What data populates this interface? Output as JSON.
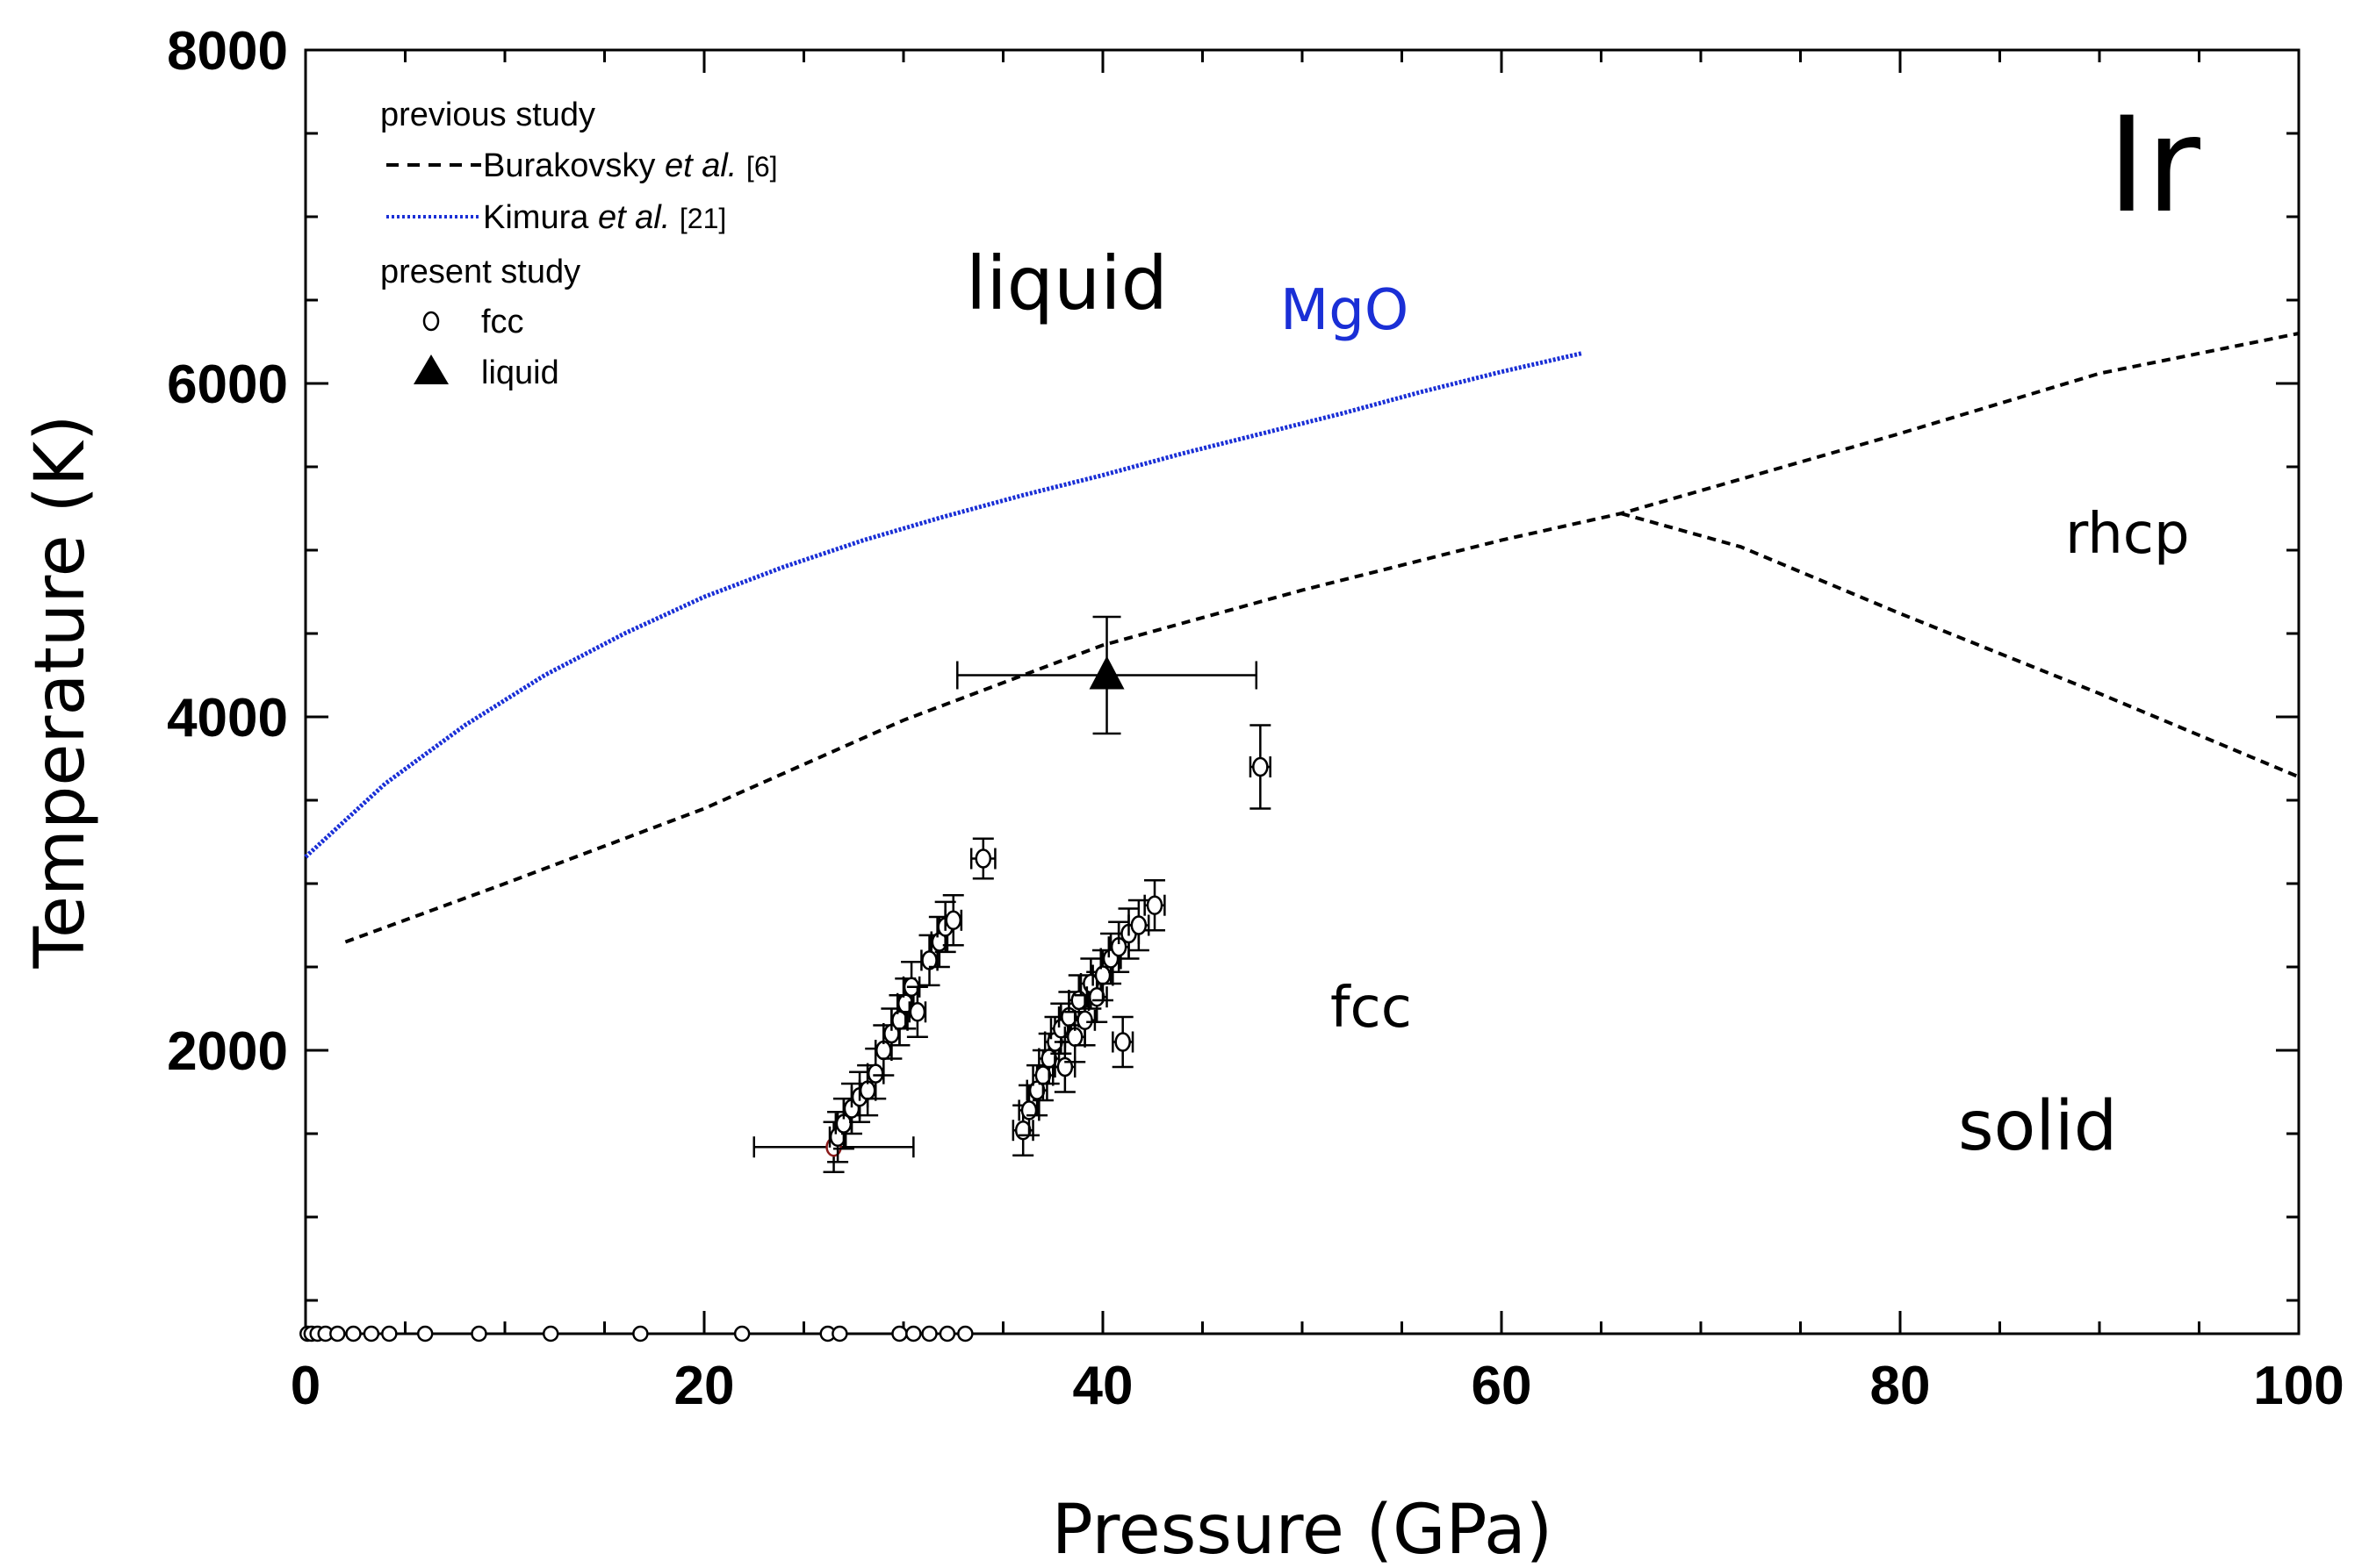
{
  "chart_data": {
    "type": "scatter",
    "element": "Ir",
    "xlabel": "Pressure (GPa)",
    "ylabel": "Temperature (K)",
    "xlim": [
      0,
      100
    ],
    "ylim": [
      300,
      8000
    ],
    "x_ticks": [
      0,
      20,
      40,
      60,
      80,
      100
    ],
    "y_ticks": [
      2000,
      4000,
      6000,
      8000
    ],
    "x_tick_labels": [
      "0",
      "20",
      "40",
      "60",
      "80",
      "100"
    ],
    "y_tick_labels": [
      "2000",
      "4000",
      "6000",
      "8000"
    ],
    "legend": {
      "previous_header": "previous study",
      "burakovsky": {
        "name": "Burakovsky",
        "etal": "et al.",
        "ref": "[6]"
      },
      "kimura": {
        "name": "Kimura",
        "etal": "et al.",
        "ref": "[21]"
      },
      "present_header": "present study",
      "fcc_label": "fcc",
      "liquid_label": "liquid"
    },
    "region_labels": {
      "element": "Ir",
      "liquid": "liquid",
      "mgo": "MgO",
      "rhcp": "rhcp",
      "fcc": "fcc",
      "solid": "solid"
    },
    "series": [
      {
        "name": "Kimura et al. (MgO melting)",
        "style": "dotted-blue",
        "color": "#1a2fd6",
        "points": [
          [
            0,
            3160
          ],
          [
            4,
            3600
          ],
          [
            8,
            3950
          ],
          [
            12,
            4250
          ],
          [
            16,
            4500
          ],
          [
            20,
            4720
          ],
          [
            24,
            4900
          ],
          [
            28,
            5060
          ],
          [
            32,
            5200
          ],
          [
            36,
            5330
          ],
          [
            40,
            5450
          ],
          [
            44,
            5580
          ],
          [
            48,
            5700
          ],
          [
            52,
            5820
          ],
          [
            56,
            5950
          ],
          [
            60,
            6070
          ],
          [
            64,
            6180
          ]
        ]
      },
      {
        "name": "Burakovsky et al. melting",
        "style": "dashed-black",
        "color": "#000000",
        "points": [
          [
            2,
            2650
          ],
          [
            10,
            3000
          ],
          [
            20,
            3450
          ],
          [
            30,
            3980
          ],
          [
            40,
            4430
          ],
          [
            50,
            4760
          ],
          [
            60,
            5060
          ],
          [
            66,
            5220
          ],
          [
            80,
            5700
          ],
          [
            90,
            6060
          ],
          [
            100,
            6300
          ]
        ]
      },
      {
        "name": "Burakovsky et al. fcc-rhcp",
        "style": "dashed-black",
        "color": "#000000",
        "points": [
          [
            66,
            5220
          ],
          [
            72,
            5020
          ],
          [
            80,
            4620
          ],
          [
            90,
            4140
          ],
          [
            100,
            3640
          ]
        ]
      }
    ],
    "fcc_points": [
      {
        "p": 26.5,
        "t": 1420,
        "pe": 4.0,
        "te": 150,
        "color": "#8b1a1a"
      },
      {
        "p": 26.7,
        "t": 1480,
        "pe": 0.4,
        "te": 150
      },
      {
        "p": 27.0,
        "t": 1560,
        "pe": 0.4,
        "te": 150
      },
      {
        "p": 27.4,
        "t": 1650,
        "pe": 0.4,
        "te": 150
      },
      {
        "p": 27.8,
        "t": 1720,
        "pe": 0.4,
        "te": 150
      },
      {
        "p": 28.2,
        "t": 1760,
        "pe": 0.4,
        "te": 150
      },
      {
        "p": 28.6,
        "t": 1860,
        "pe": 0.4,
        "te": 150
      },
      {
        "p": 29.0,
        "t": 2000,
        "pe": 0.4,
        "te": 150
      },
      {
        "p": 29.4,
        "t": 2100,
        "pe": 0.4,
        "te": 150
      },
      {
        "p": 29.8,
        "t": 2180,
        "pe": 0.4,
        "te": 150
      },
      {
        "p": 30.1,
        "t": 2280,
        "pe": 0.4,
        "te": 150
      },
      {
        "p": 30.4,
        "t": 2380,
        "pe": 0.4,
        "te": 150
      },
      {
        "p": 30.7,
        "t": 2230,
        "pe": 0.4,
        "te": 150
      },
      {
        "p": 31.3,
        "t": 2540,
        "pe": 0.4,
        "te": 150
      },
      {
        "p": 31.8,
        "t": 2650,
        "pe": 0.4,
        "te": 150
      },
      {
        "p": 32.1,
        "t": 2740,
        "pe": 0.4,
        "te": 150
      },
      {
        "p": 32.5,
        "t": 2780,
        "pe": 0.4,
        "te": 150
      },
      {
        "p": 34.0,
        "t": 3150,
        "pe": 0.6,
        "te": 120
      },
      {
        "p": 36.0,
        "t": 1520,
        "pe": 0.5,
        "te": 150
      },
      {
        "p": 36.3,
        "t": 1640,
        "pe": 0.5,
        "te": 150
      },
      {
        "p": 36.7,
        "t": 1760,
        "pe": 0.5,
        "te": 150
      },
      {
        "p": 37.0,
        "t": 1850,
        "pe": 0.5,
        "te": 150
      },
      {
        "p": 37.3,
        "t": 1950,
        "pe": 0.5,
        "te": 150
      },
      {
        "p": 37.6,
        "t": 2050,
        "pe": 0.5,
        "te": 150
      },
      {
        "p": 37.9,
        "t": 2130,
        "pe": 0.5,
        "te": 150
      },
      {
        "p": 38.1,
        "t": 1900,
        "pe": 0.5,
        "te": 150
      },
      {
        "p": 38.3,
        "t": 2200,
        "pe": 0.5,
        "te": 150
      },
      {
        "p": 38.6,
        "t": 2080,
        "pe": 0.5,
        "te": 150
      },
      {
        "p": 38.8,
        "t": 2300,
        "pe": 0.5,
        "te": 150
      },
      {
        "p": 39.1,
        "t": 2180,
        "pe": 0.5,
        "te": 150
      },
      {
        "p": 39.4,
        "t": 2400,
        "pe": 0.5,
        "te": 150
      },
      {
        "p": 39.7,
        "t": 2320,
        "pe": 0.5,
        "te": 150
      },
      {
        "p": 40.0,
        "t": 2450,
        "pe": 0.5,
        "te": 150
      },
      {
        "p": 40.4,
        "t": 2550,
        "pe": 0.5,
        "te": 150
      },
      {
        "p": 40.8,
        "t": 2620,
        "pe": 0.5,
        "te": 150
      },
      {
        "p": 41.0,
        "t": 2050,
        "pe": 0.5,
        "te": 150
      },
      {
        "p": 41.3,
        "t": 2700,
        "pe": 0.5,
        "te": 150
      },
      {
        "p": 41.8,
        "t": 2750,
        "pe": 0.5,
        "te": 150
      },
      {
        "p": 42.6,
        "t": 2870,
        "pe": 0.5,
        "te": 150
      },
      {
        "p": 47.9,
        "t": 3700,
        "pe": 0.5,
        "te": 250
      }
    ],
    "liquid_points": [
      {
        "p": 40.2,
        "t": 4250,
        "pe": 7.5,
        "te": 350
      }
    ],
    "ambient_points_t": 300,
    "ambient_points_p": [
      0.1,
      0.3,
      0.6,
      1.0,
      1.6,
      2.4,
      3.3,
      4.2,
      6.0,
      8.7,
      12.3,
      16.8,
      21.9,
      26.2,
      26.8,
      29.8,
      30.5,
      31.3,
      32.2,
      33.1
    ]
  }
}
